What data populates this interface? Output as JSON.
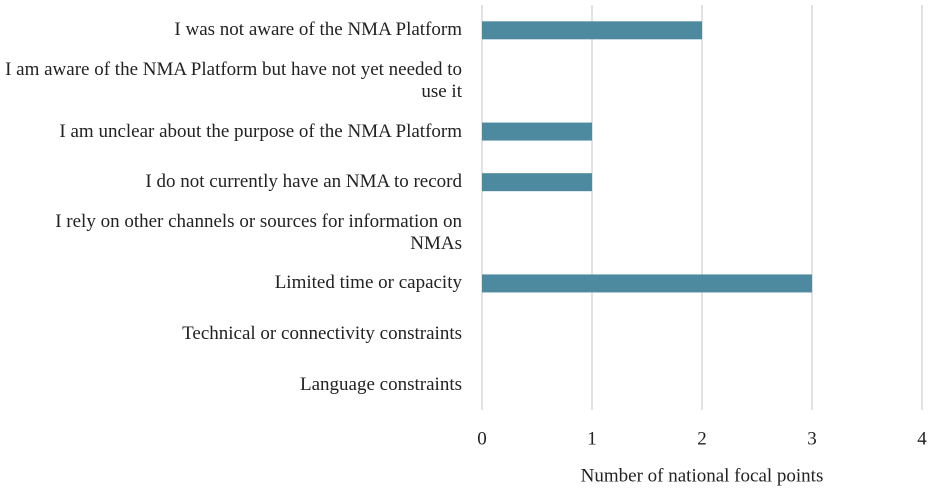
{
  "chart_data": {
    "type": "barh",
    "categories": [
      "I was not aware of the NMA Platform",
      "I am aware of the NMA Platform but have not yet needed to use it",
      "I am unclear about the purpose of the NMA Platform",
      "I do not currently have an NMA to record",
      "I rely on other channels or sources for information on NMAs",
      "Limited time or capacity",
      "Technical or connectivity constraints",
      "Language constraints"
    ],
    "values": [
      2,
      0,
      1,
      1,
      0,
      3,
      0,
      0
    ],
    "color": "#4d8aa0",
    "xlabel": "Number of national focal points",
    "xlim": [
      0,
      4
    ],
    "xticks": [
      0,
      1,
      2,
      3,
      4
    ],
    "grid": true
  }
}
